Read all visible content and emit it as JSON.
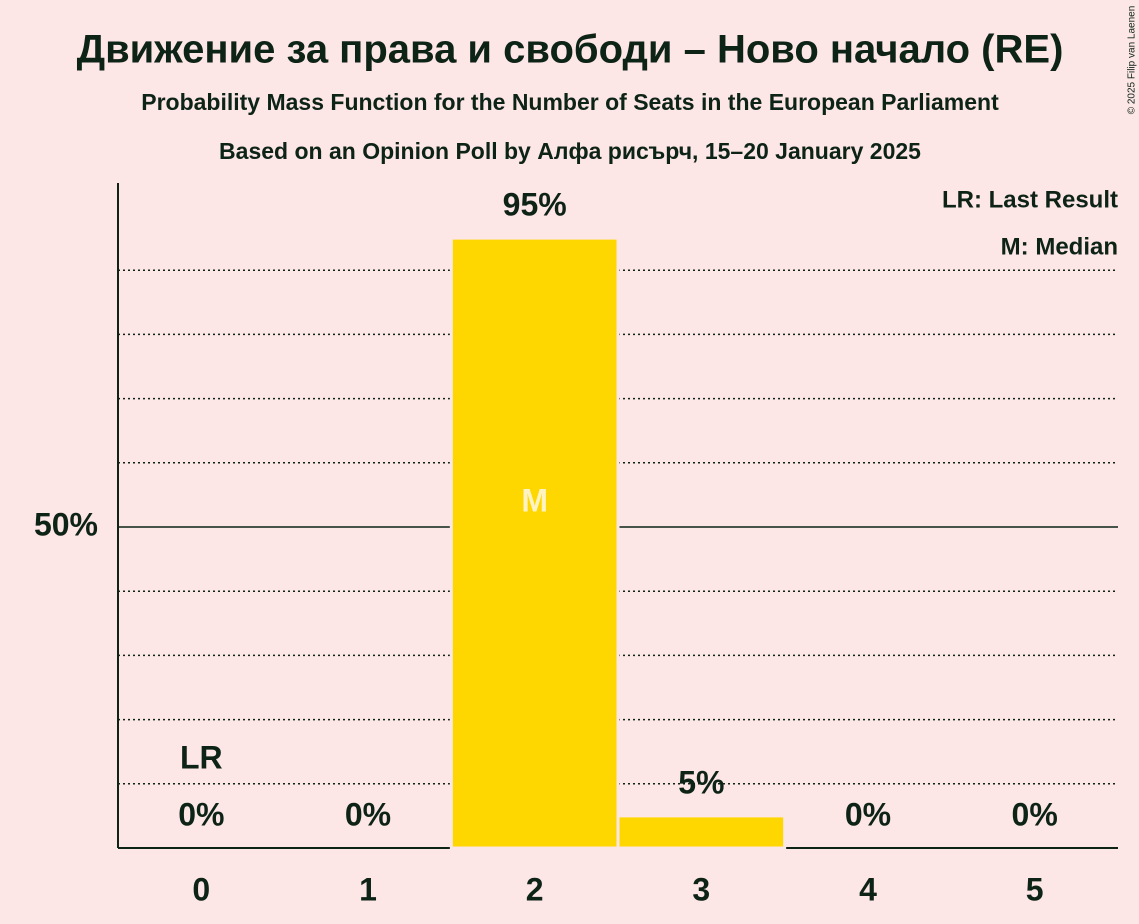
{
  "chart_data": {
    "type": "bar",
    "title": "Движение за права и свободи – Ново начало (RE)",
    "subtitle": "Probability Mass Function for the Number of Seats in the European Parliament",
    "subtitle2": "Based on an Opinion Poll by Алфа рисърч, 15–20 January 2025",
    "categories": [
      "0",
      "1",
      "2",
      "3",
      "4",
      "5"
    ],
    "values": [
      0,
      0,
      95,
      5,
      0,
      0
    ],
    "value_labels": [
      "0%",
      "0%",
      "95%",
      "5%",
      "0%",
      "0%"
    ],
    "color": "#ffd700",
    "ylim": [
      0,
      100
    ],
    "yticks": [
      {
        "value": 50,
        "label": "50%"
      }
    ],
    "minor_grid": [
      10,
      20,
      30,
      40,
      60,
      70,
      80,
      90
    ],
    "annotations": [
      {
        "text": "LR",
        "category": "0"
      },
      {
        "text": "M",
        "category": "2"
      }
    ],
    "legend": [
      "LR: Last Result",
      "M: Median"
    ],
    "copyright": "© 2025 Filip van Laenen"
  }
}
